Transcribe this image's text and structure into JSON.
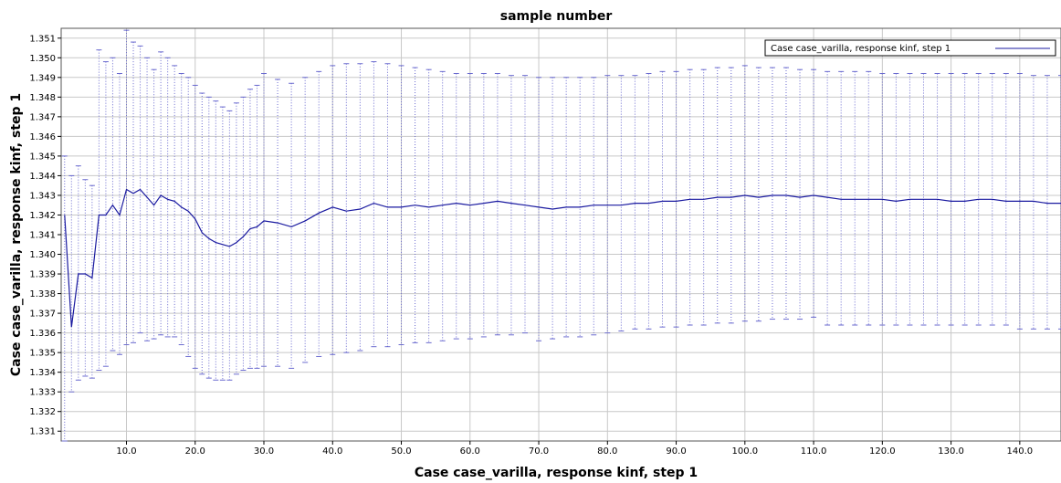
{
  "chart_data": {
    "type": "line",
    "title": "sample number",
    "xlabel": "Case case_varilla, response kinf, step 1",
    "ylabel": "Case case_varilla, response kinf, step 1",
    "xlim": [
      0.5,
      146
    ],
    "ylim": [
      1.3305,
      1.3515
    ],
    "x_ticks": [
      10,
      20,
      30,
      40,
      50,
      60,
      70,
      80,
      90,
      100,
      110,
      120,
      130,
      140
    ],
    "x_tick_labels": [
      "10.0",
      "20.0",
      "30.0",
      "40.0",
      "50.0",
      "60.0",
      "70.0",
      "80.0",
      "90.0",
      "100.0",
      "110.0",
      "120.0",
      "130.0",
      "140.0"
    ],
    "y_ticks": [
      1.331,
      1.332,
      1.333,
      1.334,
      1.335,
      1.336,
      1.337,
      1.338,
      1.339,
      1.34,
      1.341,
      1.342,
      1.343,
      1.344,
      1.345,
      1.346,
      1.347,
      1.348,
      1.349,
      1.35,
      1.351
    ],
    "y_tick_labels": [
      "1.331",
      "1.332",
      "1.333",
      "1.334",
      "1.335",
      "1.336",
      "1.337",
      "1.338",
      "1.339",
      "1.340",
      "1.341",
      "1.342",
      "1.343",
      "1.344",
      "1.345",
      "1.346",
      "1.347",
      "1.348",
      "1.349",
      "1.350",
      "1.351"
    ],
    "grid": true,
    "legend_position": "top-right",
    "series": [
      {
        "name": "Case case_varilla, response kinf, step 1",
        "color": "#1a1aa0",
        "error_bar_color": "#6a6acf",
        "x": [
          1,
          2,
          3,
          4,
          5,
          6,
          7,
          8,
          9,
          10,
          11,
          12,
          13,
          14,
          15,
          16,
          17,
          18,
          19,
          20,
          21,
          22,
          23,
          24,
          25,
          26,
          27,
          28,
          29,
          30,
          32,
          34,
          36,
          38,
          40,
          42,
          44,
          46,
          48,
          50,
          52,
          54,
          56,
          58,
          60,
          62,
          64,
          66,
          68,
          70,
          72,
          74,
          76,
          78,
          80,
          82,
          84,
          86,
          88,
          90,
          92,
          94,
          96,
          98,
          100,
          102,
          104,
          106,
          108,
          110,
          112,
          114,
          116,
          118,
          120,
          122,
          124,
          126,
          128,
          130,
          132,
          134,
          136,
          138,
          140,
          142,
          144,
          146
        ],
        "y": [
          1.342,
          1.3363,
          1.339,
          1.339,
          1.3388,
          1.342,
          1.342,
          1.3425,
          1.342,
          1.3433,
          1.3431,
          1.3433,
          1.3429,
          1.3425,
          1.343,
          1.3428,
          1.3427,
          1.3424,
          1.3422,
          1.3418,
          1.3411,
          1.3408,
          1.3406,
          1.3405,
          1.3404,
          1.3406,
          1.3409,
          1.3413,
          1.3414,
          1.3417,
          1.3416,
          1.3414,
          1.3417,
          1.3421,
          1.3424,
          1.3422,
          1.3423,
          1.3426,
          1.3424,
          1.3424,
          1.3425,
          1.3424,
          1.3425,
          1.3426,
          1.3425,
          1.3426,
          1.3427,
          1.3426,
          1.3425,
          1.3424,
          1.3423,
          1.3424,
          1.3424,
          1.3425,
          1.3425,
          1.3425,
          1.3426,
          1.3426,
          1.3427,
          1.3427,
          1.3428,
          1.3428,
          1.3429,
          1.3429,
          1.343,
          1.3429,
          1.343,
          1.343,
          1.3429,
          1.343,
          1.3429,
          1.3428,
          1.3428,
          1.3428,
          1.3428,
          1.3427,
          1.3428,
          1.3428,
          1.3428,
          1.3427,
          1.3427,
          1.3428,
          1.3428,
          1.3427,
          1.3427,
          1.3427,
          1.3426,
          1.3426
        ],
        "lower": [
          1.3305,
          1.333,
          1.3336,
          1.3338,
          1.3337,
          1.3341,
          1.3343,
          1.3351,
          1.3349,
          1.3354,
          1.3355,
          1.336,
          1.3356,
          1.3357,
          1.3359,
          1.3358,
          1.3358,
          1.3354,
          1.3348,
          1.3342,
          1.3339,
          1.3337,
          1.3336,
          1.3336,
          1.3336,
          1.3339,
          1.3341,
          1.3342,
          1.3342,
          1.3343,
          1.3343,
          1.3342,
          1.3345,
          1.3348,
          1.3349,
          1.335,
          1.3351,
          1.3353,
          1.3353,
          1.3354,
          1.3355,
          1.3355,
          1.3356,
          1.3357,
          1.3357,
          1.3358,
          1.3359,
          1.3359,
          1.336,
          1.3356,
          1.3357,
          1.3358,
          1.3358,
          1.3359,
          1.336,
          1.3361,
          1.3362,
          1.3362,
          1.3363,
          1.3363,
          1.3364,
          1.3364,
          1.3365,
          1.3365,
          1.3366,
          1.3366,
          1.3367,
          1.3367,
          1.3367,
          1.3368,
          1.3364,
          1.3364,
          1.3364,
          1.3364,
          1.3364,
          1.3364,
          1.3364,
          1.3364,
          1.3364,
          1.3364,
          1.3364,
          1.3364,
          1.3364,
          1.3364,
          1.3362,
          1.3362,
          1.3362,
          1.3362
        ],
        "upper": [
          1.345,
          1.344,
          1.3445,
          1.3438,
          1.3435,
          1.3504,
          1.3498,
          1.35,
          1.3492,
          1.3514,
          1.3508,
          1.3506,
          1.35,
          1.3494,
          1.3503,
          1.35,
          1.3496,
          1.3492,
          1.349,
          1.3486,
          1.3482,
          1.348,
          1.3478,
          1.3475,
          1.3473,
          1.3477,
          1.348,
          1.3484,
          1.3486,
          1.3492,
          1.3489,
          1.3487,
          1.349,
          1.3493,
          1.3496,
          1.3497,
          1.3497,
          1.3498,
          1.3497,
          1.3496,
          1.3495,
          1.3494,
          1.3493,
          1.3492,
          1.3492,
          1.3492,
          1.3492,
          1.3491,
          1.3491,
          1.349,
          1.349,
          1.349,
          1.349,
          1.349,
          1.3491,
          1.3491,
          1.3491,
          1.3492,
          1.3493,
          1.3493,
          1.3494,
          1.3494,
          1.3495,
          1.3495,
          1.3496,
          1.3495,
          1.3495,
          1.3495,
          1.3494,
          1.3494,
          1.3493,
          1.3493,
          1.3493,
          1.3493,
          1.3492,
          1.3492,
          1.3492,
          1.3492,
          1.3492,
          1.3492,
          1.3492,
          1.3492,
          1.3492,
          1.3492,
          1.3492,
          1.3491,
          1.3491,
          1.3491
        ]
      }
    ]
  }
}
